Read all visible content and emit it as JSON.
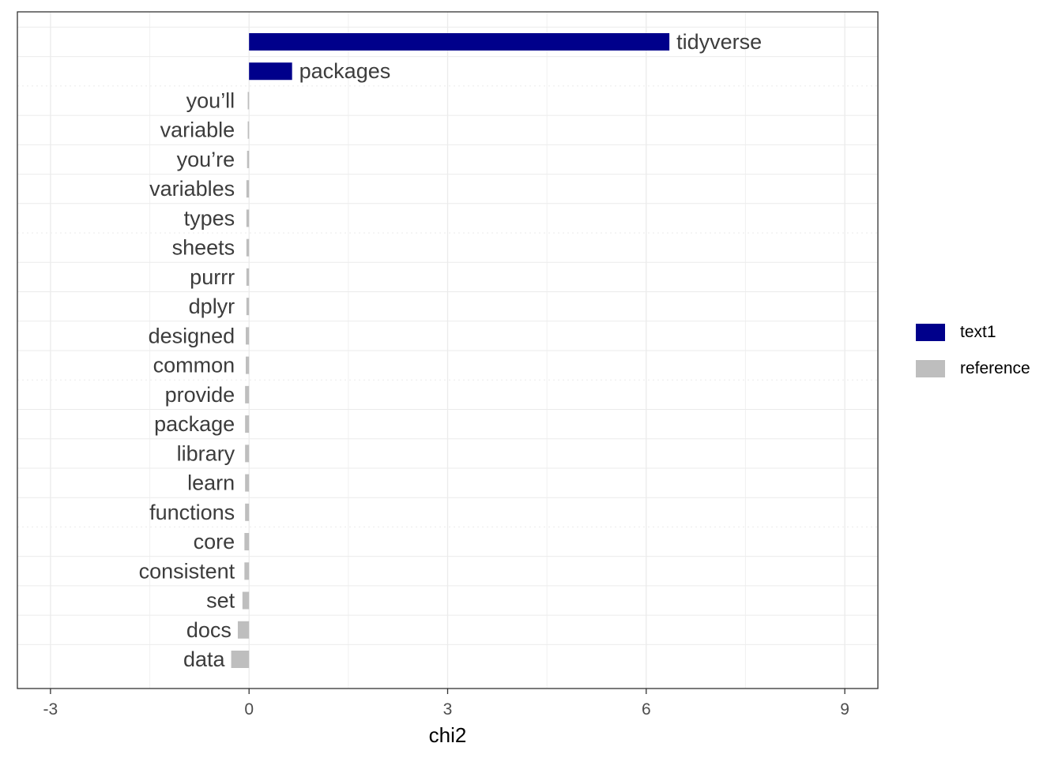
{
  "chart_data": {
    "type": "bar",
    "orientation": "horizontal",
    "title": "",
    "xlabel": "chi2",
    "ylabel": "",
    "xlim": [
      -3.5,
      9.5
    ],
    "x_ticks": [
      -3,
      0,
      3,
      6,
      9
    ],
    "x_tick_labels": [
      "-3",
      "0",
      "3",
      "6",
      "9"
    ],
    "grid": true,
    "legend_position": "right",
    "groups": [
      {
        "name": "text1",
        "color": "#00008B"
      },
      {
        "name": "reference",
        "color": "#BEBEBE"
      }
    ],
    "bars": [
      {
        "label": "tidyverse",
        "value": 6.35,
        "group": "text1"
      },
      {
        "label": "packages",
        "value": 0.65,
        "group": "text1"
      },
      {
        "label": "you’ll",
        "value": -0.02,
        "group": "reference"
      },
      {
        "label": "variable",
        "value": -0.02,
        "group": "reference"
      },
      {
        "label": "you’re",
        "value": -0.03,
        "group": "reference"
      },
      {
        "label": "variables",
        "value": -0.04,
        "group": "reference"
      },
      {
        "label": "types",
        "value": -0.04,
        "group": "reference"
      },
      {
        "label": "sheets",
        "value": -0.04,
        "group": "reference"
      },
      {
        "label": "purrr",
        "value": -0.04,
        "group": "reference"
      },
      {
        "label": "dplyr",
        "value": -0.04,
        "group": "reference"
      },
      {
        "label": "designed",
        "value": -0.05,
        "group": "reference"
      },
      {
        "label": "common",
        "value": -0.05,
        "group": "reference"
      },
      {
        "label": "provide",
        "value": -0.06,
        "group": "reference"
      },
      {
        "label": "package",
        "value": -0.06,
        "group": "reference"
      },
      {
        "label": "library",
        "value": -0.06,
        "group": "reference"
      },
      {
        "label": "learn",
        "value": -0.06,
        "group": "reference"
      },
      {
        "label": "functions",
        "value": -0.06,
        "group": "reference"
      },
      {
        "label": "core",
        "value": -0.07,
        "group": "reference"
      },
      {
        "label": "consistent",
        "value": -0.07,
        "group": "reference"
      },
      {
        "label": "set",
        "value": -0.1,
        "group": "reference"
      },
      {
        "label": "docs",
        "value": -0.17,
        "group": "reference"
      },
      {
        "label": "data",
        "value": -0.27,
        "group": "reference"
      }
    ]
  }
}
